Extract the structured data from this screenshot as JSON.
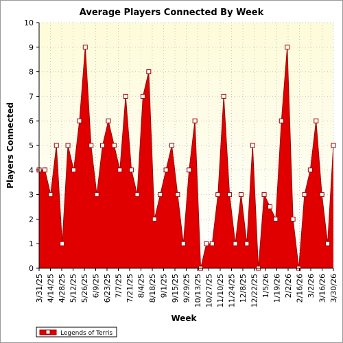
{
  "chart_data": {
    "type": "area",
    "title": "Average Players Connected By Week",
    "xlabel": "Week",
    "ylabel": "Players Connected",
    "ylim": [
      0,
      10
    ],
    "yticks": [
      0,
      1,
      2,
      3,
      4,
      5,
      6,
      7,
      8,
      9,
      10
    ],
    "grid": true,
    "legend_position": "bottom-left",
    "x_tick_labels": [
      "3/31/25",
      "4/14/25",
      "4/28/25",
      "5/12/25",
      "5/26/25",
      "6/9/25",
      "6/23/25",
      "7/7/25",
      "7/21/25",
      "8/4/25",
      "8/18/25",
      "9/1/25",
      "9/15/25",
      "9/29/25",
      "10/13/25",
      "10/27/25",
      "11/10/25",
      "11/24/25",
      "12/8/25",
      "12/22/25",
      "1/5/26",
      "1/19/26",
      "2/2/26",
      "2/16/26",
      "3/2/26",
      "3/16/26",
      "3/30/26"
    ],
    "series": [
      {
        "name": "Legends of Terris",
        "color": "#e00000",
        "values": [
          4,
          4,
          3,
          5,
          1,
          5,
          4,
          6,
          9,
          5,
          3,
          5,
          6,
          5,
          4,
          7,
          4,
          3,
          7,
          8,
          2,
          3,
          4,
          5,
          3,
          1,
          4,
          6,
          0,
          1,
          1,
          3,
          7,
          3,
          1,
          3,
          1,
          5,
          0,
          3,
          2.5,
          2,
          6,
          9,
          2,
          0,
          3,
          4,
          6,
          3,
          1,
          5
        ]
      }
    ],
    "colors": {
      "plot_background_top": "#fdfce0",
      "area_fill": "#e00000",
      "area_stroke": "#a00000"
    }
  }
}
